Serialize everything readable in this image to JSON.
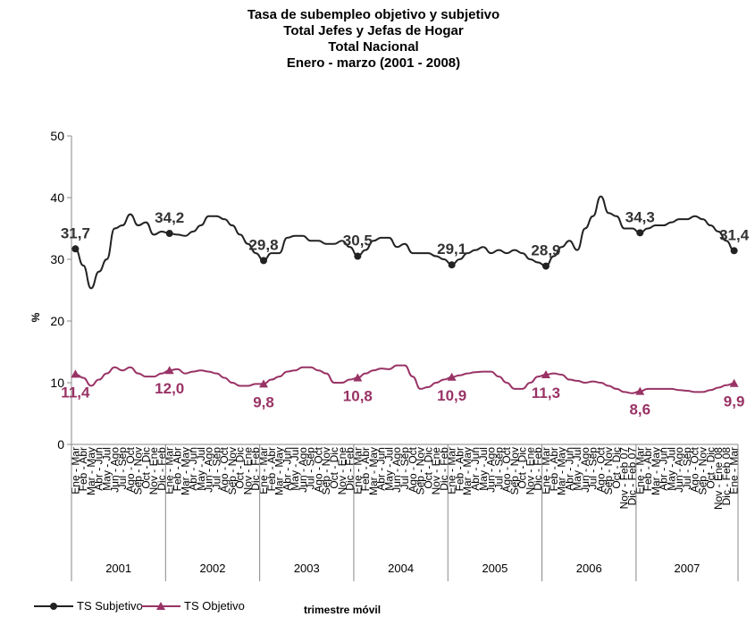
{
  "chart_data": {
    "type": "line",
    "title": [
      "Tasa de subempleo objetivo y subjetivo",
      "Total Jefes y Jefas de Hogar",
      "Total Nacional",
      "Enero - marzo (2001 - 2008)"
    ],
    "ylabel": "%",
    "xlabel": "trimestre móvil",
    "categories": [
      "Ene - Mar",
      "Feb - Abr",
      "Mar - May",
      "Abr - Jun",
      "May - Jul",
      "Jun - Ago",
      "Jul - Sep",
      "Ago - Oct",
      "Sep - Nov",
      "Oct - Dic",
      "Nov - Ene",
      "Dic - Feb",
      "Ene - Mar",
      "Feb - Abr",
      "Mar - May",
      "Abr - Jun",
      "May - Jul",
      "Jun - Ago",
      "Jul - Sep",
      "Ago - Oct",
      "Sep - Nov",
      "Oct - Dic",
      "Nov - Ene",
      "Dic - Feb",
      "Ene - Mar",
      "Feb - Abr",
      "Mar - May",
      "Abr - Jun",
      "May - Jul",
      "Jun - Ago",
      "Jul - Sep",
      "Ago - Oct",
      "Sep - Nov",
      "Oct - Dic",
      "Nov - Ene",
      "Dic - Feb",
      "Ene - Mar",
      "Feb - Abr",
      "Mar - May",
      "Abr - Jun",
      "May - Jul",
      "Jun - Ago",
      "Jul - Sep",
      "Ago - Oct",
      "Sep - Nov",
      "Oct - Dic",
      "Nov - Ene",
      "Dic - Feb",
      "Ene - Mar",
      "Feb - Abr",
      "Mar - May",
      "Abr - Jun",
      "May - Jul",
      "Jun - Ago",
      "Jul - Sep",
      "Ago - Oct",
      "Sep - Nov",
      "Oct - Dic",
      "Nov - Ene",
      "Dic - Feb",
      "Ene - Mar",
      "Feb - Abr",
      "Mar - May",
      "Abr - Jun",
      "May - Jul",
      "Jun - Ago",
      "Jul - Sep",
      "Ago - Oct",
      "Sep - Nov",
      "Oct - Dic",
      "Nov - Feb 07",
      "Dic - Feb 07",
      "Ene - Mar",
      "Feb - Abr",
      "Mar - May",
      "Abr - Jun",
      "May - Jul",
      "Jun - Ago",
      "Jul - Sep",
      "Ago - Oct",
      "Sep - Nov",
      "Oct - Dic",
      "Nov - Ene 08",
      "Dic - Feb 08",
      "Ene - Mar"
    ],
    "category_groups": [
      {
        "label": "2001",
        "size": 12
      },
      {
        "label": "2002",
        "size": 12
      },
      {
        "label": "2003",
        "size": 12
      },
      {
        "label": "2004",
        "size": 12
      },
      {
        "label": "2005",
        "size": 12
      },
      {
        "label": "2006",
        "size": 12
      },
      {
        "label": "2007",
        "size": 13
      }
    ],
    "ylim": [
      0,
      50
    ],
    "yticks": [
      0,
      10,
      20,
      30,
      40,
      50
    ],
    "series": [
      {
        "name": "TS Subjetivo",
        "color": "#222222",
        "marker": "circle",
        "values": [
          31.7,
          29,
          25.3,
          28,
          30,
          35,
          35.5,
          37.3,
          35.5,
          36,
          34,
          34.5,
          34.2,
          34,
          33.8,
          34.5,
          35.5,
          37,
          37,
          36.5,
          35.5,
          34,
          32.5,
          31,
          29.8,
          31,
          31,
          33.5,
          33.8,
          33.8,
          33,
          33,
          32.5,
          32.5,
          33,
          32,
          30.5,
          31.5,
          33,
          33.5,
          33.5,
          32,
          32.5,
          31,
          31,
          31,
          30.5,
          30,
          29.1,
          30,
          31,
          31.5,
          32,
          31,
          31.5,
          31,
          31.5,
          31,
          30,
          29.5,
          28.9,
          30.5,
          32,
          33,
          31.5,
          35,
          37,
          40.2,
          37.5,
          37,
          35,
          35,
          34.3,
          35,
          35.5,
          35.5,
          36,
          36.5,
          36.5,
          37,
          36.5,
          35.5,
          34.5,
          33,
          31.4
        ],
        "value_labels": [
          "31,7",
          null,
          null,
          null,
          null,
          null,
          null,
          null,
          null,
          null,
          null,
          null,
          "34,2",
          null,
          null,
          null,
          null,
          null,
          null,
          null,
          null,
          null,
          null,
          null,
          "29,8",
          null,
          null,
          null,
          null,
          null,
          null,
          null,
          null,
          null,
          null,
          null,
          "30,5",
          null,
          null,
          null,
          null,
          null,
          null,
          null,
          null,
          null,
          null,
          null,
          "29,1",
          null,
          null,
          null,
          null,
          null,
          null,
          null,
          null,
          null,
          null,
          null,
          "28,9",
          null,
          null,
          null,
          null,
          null,
          null,
          null,
          null,
          null,
          null,
          null,
          "34,3",
          null,
          null,
          null,
          null,
          null,
          null,
          null,
          null,
          null,
          null,
          null,
          "31,4"
        ]
      },
      {
        "name": "TS Objetivo",
        "color": "#993366",
        "marker": "triangle",
        "values": [
          11.4,
          10.8,
          9.5,
          10.5,
          11.5,
          12.5,
          12,
          12.5,
          11.5,
          11,
          11,
          11.5,
          12.0,
          12.2,
          11.5,
          11.8,
          12,
          11.8,
          11.5,
          10.8,
          10,
          9.5,
          9.5,
          9.8,
          9.8,
          10.5,
          11,
          11.8,
          12,
          12.5,
          12.5,
          12,
          11.5,
          10,
          10,
          10.5,
          10.8,
          11.5,
          12,
          12.3,
          12.2,
          12.8,
          12.8,
          11,
          9,
          9.3,
          10,
          10.5,
          10.9,
          11.2,
          11.5,
          11.7,
          11.8,
          11.8,
          11,
          10,
          9,
          9,
          10,
          11,
          11.3,
          11.5,
          11.3,
          10.5,
          10.3,
          10,
          10.2,
          10,
          9.5,
          9,
          8.5,
          8.3,
          8.6,
          9,
          9,
          9,
          9,
          8.8,
          8.7,
          8.5,
          8.5,
          8.8,
          9.2,
          9.6,
          9.9
        ],
        "value_labels": [
          "11,4",
          null,
          null,
          null,
          null,
          null,
          null,
          null,
          null,
          null,
          null,
          null,
          "12,0",
          null,
          null,
          null,
          null,
          null,
          null,
          null,
          null,
          null,
          null,
          null,
          "9,8",
          null,
          null,
          null,
          null,
          null,
          null,
          null,
          null,
          null,
          null,
          null,
          "10,8",
          null,
          null,
          null,
          null,
          null,
          null,
          null,
          null,
          null,
          null,
          null,
          "10,9",
          null,
          null,
          null,
          null,
          null,
          null,
          null,
          null,
          null,
          null,
          null,
          "11,3",
          null,
          null,
          null,
          null,
          null,
          null,
          null,
          null,
          null,
          null,
          null,
          "8,6",
          null,
          null,
          null,
          null,
          null,
          null,
          null,
          null,
          null,
          null,
          null,
          "9,9"
        ]
      }
    ]
  }
}
